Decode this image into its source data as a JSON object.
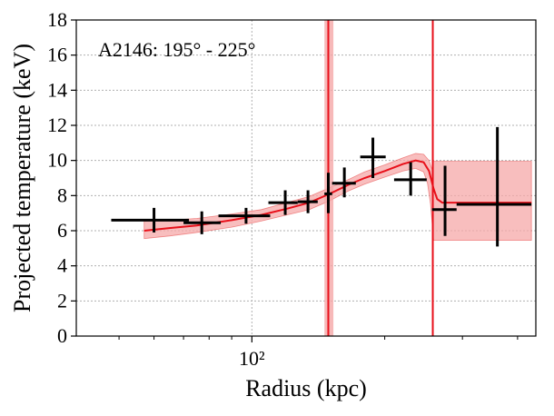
{
  "chart_data": {
    "type": "scatter",
    "title": "",
    "annotation": "A2146: 195° - 225°",
    "xlabel": "Radius (kpc)",
    "ylabel": "Projected temperature (keV)",
    "x_scale": "log",
    "xlim": [
      40,
      440
    ],
    "ylim": [
      0,
      18
    ],
    "x_tick_labels": [
      {
        "value": 100,
        "label": "10²"
      }
    ],
    "y_ticks": [
      0,
      2,
      4,
      6,
      8,
      10,
      12,
      14,
      16,
      18
    ],
    "grid": true,
    "colors": {
      "data": "#000000",
      "model_line": "#e8101a",
      "model_band": "#f5a8a8",
      "band_edge": "#e84a4a",
      "grid": "#b0b0b0"
    },
    "series": [
      {
        "type": "errorbar",
        "points": [
          {
            "x": 60,
            "xlo": 48,
            "xhi": 72,
            "y": 6.6,
            "ylo": 5.9,
            "yhi": 7.3
          },
          {
            "x": 77,
            "xlo": 70,
            "xhi": 85,
            "y": 6.45,
            "ylo": 5.8,
            "yhi": 7.1
          },
          {
            "x": 97,
            "xlo": 84,
            "xhi": 110,
            "y": 6.85,
            "ylo": 6.4,
            "yhi": 7.3
          },
          {
            "x": 119,
            "xlo": 109,
            "xhi": 127,
            "y": 7.6,
            "ylo": 6.9,
            "yhi": 8.3
          },
          {
            "x": 134,
            "xlo": 127,
            "xhi": 141,
            "y": 7.65,
            "ylo": 7.0,
            "yhi": 8.3
          },
          {
            "x": 149,
            "xlo": 146,
            "xhi": 152,
            "y": 8.1,
            "ylo": 7.0,
            "yhi": 9.3
          },
          {
            "x": 162,
            "xlo": 152,
            "xhi": 172,
            "y": 8.7,
            "ylo": 7.9,
            "yhi": 9.6
          },
          {
            "x": 188,
            "xlo": 176,
            "xhi": 201,
            "y": 10.2,
            "ylo": 9.0,
            "yhi": 11.3
          },
          {
            "x": 229,
            "xlo": 210,
            "xhi": 249,
            "y": 8.9,
            "ylo": 8.0,
            "yhi": 9.9
          },
          {
            "x": 274,
            "xlo": 256,
            "xhi": 291,
            "y": 7.2,
            "ylo": 5.7,
            "yhi": 9.7
          },
          {
            "x": 360,
            "xlo": 291,
            "xhi": 430,
            "y": 7.5,
            "ylo": 5.1,
            "yhi": 11.9
          }
        ]
      },
      {
        "type": "model",
        "line": [
          [
            57,
            6.0
          ],
          [
            65,
            6.15
          ],
          [
            75,
            6.3
          ],
          [
            90,
            6.6
          ],
          [
            105,
            6.9
          ],
          [
            120,
            7.25
          ],
          [
            135,
            7.6
          ],
          [
            150,
            8.1
          ],
          [
            165,
            8.6
          ],
          [
            180,
            9.0
          ],
          [
            200,
            9.4
          ],
          [
            220,
            9.8
          ],
          [
            235,
            10.0
          ],
          [
            245,
            9.9
          ],
          [
            252,
            9.4
          ],
          [
            258,
            8.4
          ],
          [
            263,
            7.8
          ],
          [
            270,
            7.6
          ],
          [
            300,
            7.6
          ],
          [
            350,
            7.6
          ],
          [
            430,
            7.6
          ]
        ],
        "band_upper": [
          [
            57,
            6.55
          ],
          [
            65,
            6.6
          ],
          [
            75,
            6.7
          ],
          [
            90,
            6.95
          ],
          [
            105,
            7.2
          ],
          [
            120,
            7.6
          ],
          [
            135,
            7.95
          ],
          [
            150,
            8.45
          ],
          [
            165,
            8.9
          ],
          [
            180,
            9.35
          ],
          [
            200,
            9.75
          ],
          [
            220,
            10.15
          ],
          [
            235,
            10.4
          ],
          [
            245,
            10.35
          ],
          [
            252,
            10.0
          ],
          [
            256,
            9.5
          ],
          [
            258,
            9.95
          ],
          [
            430,
            9.95
          ]
        ],
        "band_lower": [
          [
            57,
            5.55
          ],
          [
            65,
            5.7
          ],
          [
            75,
            5.9
          ],
          [
            90,
            6.2
          ],
          [
            105,
            6.55
          ],
          [
            120,
            6.9
          ],
          [
            135,
            7.2
          ],
          [
            150,
            7.7
          ],
          [
            165,
            8.25
          ],
          [
            180,
            8.65
          ],
          [
            200,
            9.05
          ],
          [
            220,
            9.4
          ],
          [
            235,
            9.55
          ],
          [
            245,
            9.35
          ],
          [
            250,
            8.7
          ],
          [
            254,
            7.5
          ],
          [
            258,
            5.45
          ],
          [
            430,
            5.45
          ]
        ]
      }
    ],
    "vertical_lines": [
      {
        "x": 149,
        "band": [
          146,
          153
        ]
      },
      {
        "x": 257,
        "band": [
          256,
          258
        ]
      }
    ]
  }
}
